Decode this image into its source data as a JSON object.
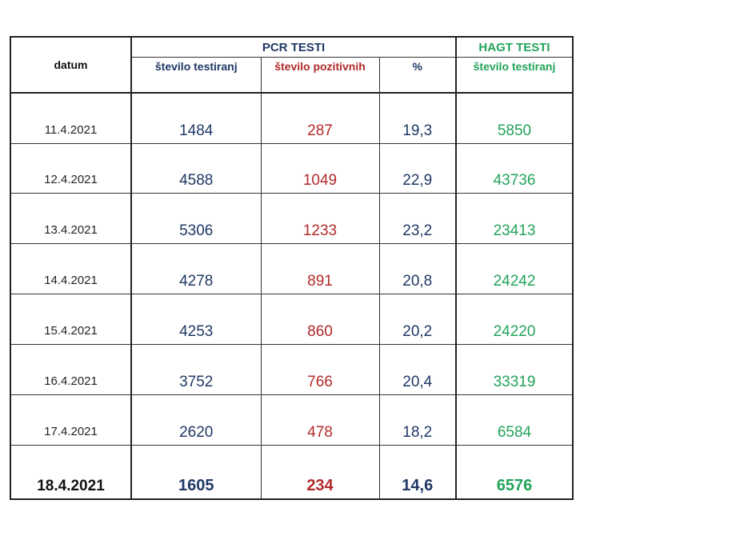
{
  "header": {
    "datum": "datum",
    "pcr_group": "PCR TESTI",
    "hagt_group": "HAGT TESTI",
    "pcr_tested": "število testiranj",
    "pcr_positive": "število pozitivnih",
    "percent": "%",
    "hagt_tested": "število testiranj"
  },
  "colors": {
    "navy": "#1f3864",
    "red": "#b22a2a",
    "green": "#22a35a"
  },
  "rows": [
    {
      "date": "11.4.2021",
      "pcr_tested": "1484",
      "pcr_positive": "287",
      "percent": "19,3",
      "hagt_tested": "5850"
    },
    {
      "date": "12.4.2021",
      "pcr_tested": "4588",
      "pcr_positive": "1049",
      "percent": "22,9",
      "hagt_tested": "43736"
    },
    {
      "date": "13.4.2021",
      "pcr_tested": "5306",
      "pcr_positive": "1233",
      "percent": "23,2",
      "hagt_tested": "23413"
    },
    {
      "date": "14.4.2021",
      "pcr_tested": "4278",
      "pcr_positive": "891",
      "percent": "20,8",
      "hagt_tested": "24242"
    },
    {
      "date": "15.4.2021",
      "pcr_tested": "4253",
      "pcr_positive": "860",
      "percent": "20,2",
      "hagt_tested": "24220"
    },
    {
      "date": "16.4.2021",
      "pcr_tested": "3752",
      "pcr_positive": "766",
      "percent": "20,4",
      "hagt_tested": "33319"
    },
    {
      "date": "17.4.2021",
      "pcr_tested": "2620",
      "pcr_positive": "478",
      "percent": "18,2",
      "hagt_tested": "6584"
    },
    {
      "date": "18.4.2021",
      "pcr_tested": "1605",
      "pcr_positive": "234",
      "percent": "14,6",
      "hagt_tested": "6576"
    }
  ]
}
